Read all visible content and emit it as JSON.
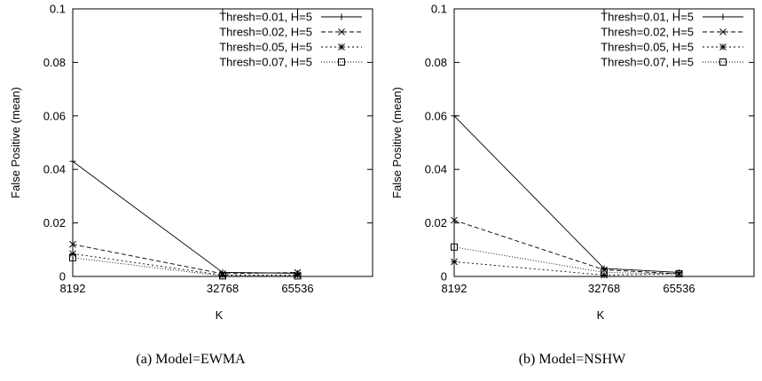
{
  "chart_data": [
    {
      "type": "line",
      "caption": "(a) Model=EWMA",
      "xlabel": "K",
      "ylabel": "False Positive (mean)",
      "x": [
        8192,
        32768,
        65536
      ],
      "xticks": [
        "8192",
        "32768",
        "65536"
      ],
      "yticks": [
        "0",
        "0.02",
        "0.04",
        "0.06",
        "0.08",
        "0.1"
      ],
      "ylim": [
        0,
        0.1
      ],
      "legend_position": "top-right",
      "series": [
        {
          "name": "Thresh=0.01, H=5",
          "marker": "plus",
          "dash": "solid",
          "values": [
            0.043,
            0.0015,
            0.0012
          ]
        },
        {
          "name": "Thresh=0.02, H=5",
          "marker": "cross",
          "dash": "dashed",
          "values": [
            0.012,
            0.001,
            0.0015
          ]
        },
        {
          "name": "Thresh=0.05, H=5",
          "marker": "star",
          "dash": "dotted",
          "values": [
            0.0085,
            0.0005,
            0.0005
          ]
        },
        {
          "name": "Thresh=0.07, H=5",
          "marker": "square",
          "dash": "dotted-fine",
          "values": [
            0.007,
            0.0002,
            0.0002
          ]
        }
      ]
    },
    {
      "type": "line",
      "caption": "(b) Model=NSHW",
      "xlabel": "K",
      "ylabel": "False Positive (mean)",
      "x": [
        8192,
        32768,
        65536
      ],
      "xticks": [
        "8192",
        "32768",
        "65536"
      ],
      "yticks": [
        "0",
        "0.02",
        "0.04",
        "0.06",
        "0.08",
        "0.1"
      ],
      "ylim": [
        0,
        0.1
      ],
      "legend_position": "top-right",
      "series": [
        {
          "name": "Thresh=0.01, H=5",
          "marker": "plus",
          "dash": "solid",
          "values": [
            0.06,
            0.003,
            0.0015
          ]
        },
        {
          "name": "Thresh=0.02, H=5",
          "marker": "cross",
          "dash": "dashed",
          "values": [
            0.021,
            0.0025,
            0.001
          ]
        },
        {
          "name": "Thresh=0.05, H=5",
          "marker": "star",
          "dash": "dotted",
          "values": [
            0.0055,
            0.0005,
            0.001
          ]
        },
        {
          "name": "Thresh=0.07, H=5",
          "marker": "square",
          "dash": "dotted-fine",
          "values": [
            0.011,
            0.0015,
            0.001
          ]
        }
      ]
    }
  ]
}
